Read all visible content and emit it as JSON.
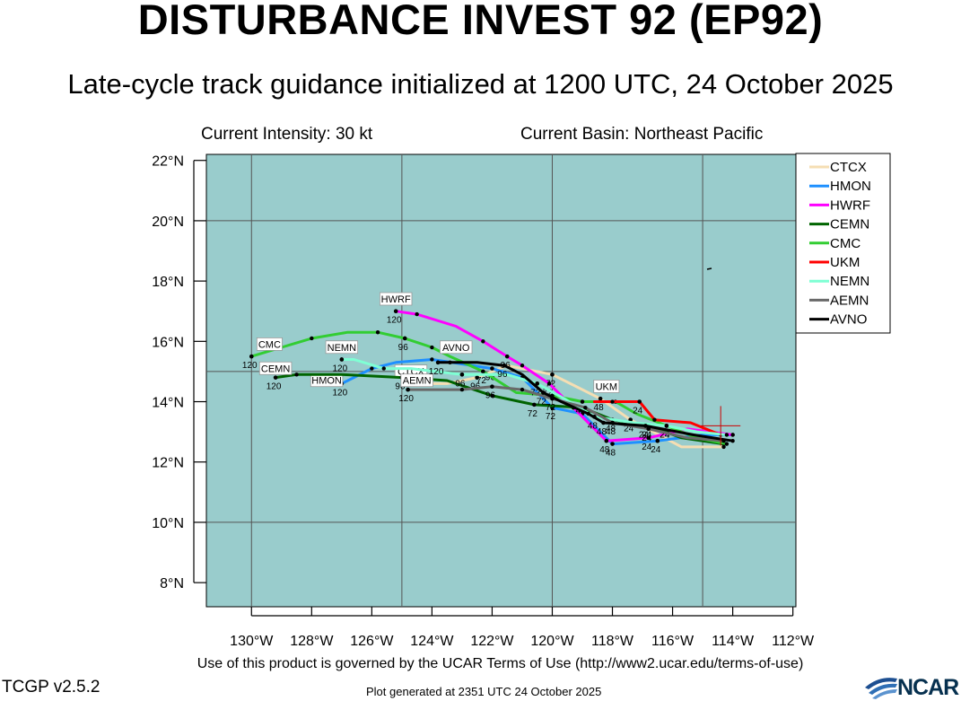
{
  "title": "DISTURBANCE INVEST 92 (EP92)",
  "subtitle": "Late-cycle track guidance initialized at 1200 UTC, 24 October 2025",
  "current_intensity": "Current Intensity: 30 kt",
  "current_basin": "Current Basin: Northeast Pacific",
  "terms": "Use of this product is governed by the UCAR Terms of Use (http://www2.ucar.edu/terms-of-use)",
  "version": "TCGP v2.5.2",
  "generated": "Plot generated at 2351 UTC   24 October 2025",
  "logo_text": "NCAR",
  "colors": {
    "ocean": "#99cccc",
    "grid": "#555555"
  },
  "chart_data": {
    "type": "line",
    "xlim": [
      -131.5,
      -111.9
    ],
    "ylim": [
      7.2,
      22.2
    ],
    "x_ticks": [
      {
        "v": -130,
        "t": "130°W"
      },
      {
        "v": -128,
        "t": "128°W"
      },
      {
        "v": -126,
        "t": "126°W"
      },
      {
        "v": -124,
        "t": "124°W"
      },
      {
        "v": -122,
        "t": "122°W"
      },
      {
        "v": -120,
        "t": "120°W"
      },
      {
        "v": -118,
        "t": "118°W"
      },
      {
        "v": -116,
        "t": "116°W"
      },
      {
        "v": -114,
        "t": "114°W"
      },
      {
        "v": -112,
        "t": "112°W"
      }
    ],
    "y_ticks": [
      {
        "v": 22,
        "t": "22°N"
      },
      {
        "v": 20,
        "t": "20°N"
      },
      {
        "v": 18,
        "t": "18°N"
      },
      {
        "v": 16,
        "t": "16°N"
      },
      {
        "v": 14,
        "t": "14°N"
      },
      {
        "v": 12,
        "t": "12°N"
      },
      {
        "v": 10,
        "t": "10°N"
      },
      {
        "v": 8,
        "t": "8°N"
      }
    ],
    "grid_lon": [
      -130,
      -125,
      -120,
      -115
    ],
    "grid_lat": [
      10,
      15,
      20
    ],
    "current_position": [
      -114.4,
      13.2
    ],
    "legend_position": "right",
    "series": [
      {
        "name": "CTCX",
        "color": "#f5deb3",
        "points": [
          [
            -114.3,
            12.5
          ],
          [
            -115.7,
            12.5
          ],
          [
            -117.4,
            13.4
          ],
          [
            -118.4,
            14.1
          ],
          [
            -120.0,
            14.9
          ],
          [
            -121.5,
            15.2
          ],
          [
            -122.5,
            14.8
          ],
          [
            -123.5,
            14.6
          ],
          [
            -124.2,
            14.6
          ]
        ],
        "tags": [
          {
            "i": 2,
            "t": "24"
          },
          {
            "i": 3,
            "t": "48"
          },
          {
            "i": 4,
            "t": "72"
          },
          {
            "i": 6,
            "t": "96"
          }
        ],
        "end_label": "CTCX",
        "end_label_pos": [
          -124.7,
          14.8
        ]
      },
      {
        "name": "HMON",
        "color": "#1e90ff",
        "points": [
          [
            -114.0,
            12.9
          ],
          [
            -115.0,
            12.9
          ],
          [
            -116.5,
            12.7
          ],
          [
            -118.0,
            12.6
          ],
          [
            -119.0,
            13.6
          ],
          [
            -120.0,
            13.8
          ],
          [
            -121.0,
            14.8
          ],
          [
            -122.0,
            15.1
          ],
          [
            -124.0,
            15.4
          ],
          [
            -125.2,
            15.3
          ],
          [
            -126.0,
            15.1
          ],
          [
            -127.0,
            14.6
          ]
        ],
        "tags": [
          {
            "i": 2,
            "t": "24"
          },
          {
            "i": 3,
            "t": "48"
          },
          {
            "i": 5,
            "t": "72"
          },
          {
            "i": 7,
            "t": "96"
          },
          {
            "i": 11,
            "t": "120"
          }
        ],
        "end_label": "HMON",
        "end_label_pos": [
          -127.5,
          14.5
        ]
      },
      {
        "name": "HWRF",
        "color": "#ff00ff",
        "points": [
          [
            -114.0,
            12.9
          ],
          [
            -115.5,
            13.1
          ],
          [
            -116.8,
            12.8
          ],
          [
            -118.2,
            12.7
          ],
          [
            -119.3,
            13.8
          ],
          [
            -120.1,
            14.6
          ],
          [
            -121.0,
            15.2
          ],
          [
            -121.5,
            15.5
          ],
          [
            -122.3,
            16.0
          ],
          [
            -123.2,
            16.5
          ],
          [
            -124.5,
            16.9
          ],
          [
            -125.2,
            17.0
          ]
        ],
        "tags": [
          {
            "i": 2,
            "t": "24"
          },
          {
            "i": 3,
            "t": "48"
          },
          {
            "i": 5,
            "t": "72"
          },
          {
            "i": 7,
            "t": "96"
          },
          {
            "i": 11,
            "t": "120"
          }
        ],
        "end_label": "HWRF",
        "end_label_pos": [
          -125.2,
          17.2
        ]
      },
      {
        "name": "CEMN",
        "color": "#006400",
        "points": [
          [
            -114.3,
            12.6
          ],
          [
            -115.7,
            12.8
          ],
          [
            -116.8,
            13.2
          ],
          [
            -118.0,
            13.4
          ],
          [
            -119.0,
            13.8
          ],
          [
            -120.6,
            13.9
          ],
          [
            -122.0,
            14.2
          ],
          [
            -123.5,
            14.7
          ],
          [
            -125.0,
            14.8
          ],
          [
            -127.0,
            14.9
          ],
          [
            -128.5,
            14.9
          ],
          [
            -129.2,
            14.8
          ]
        ],
        "tags": [
          {
            "i": 2,
            "t": "24"
          },
          {
            "i": 3,
            "t": "48"
          },
          {
            "i": 5,
            "t": "72"
          },
          {
            "i": 8,
            "t": "96"
          },
          {
            "i": 11,
            "t": "120"
          }
        ],
        "end_label": "CEMN",
        "end_label_pos": [
          -129.2,
          14.9
        ]
      },
      {
        "name": "CMC",
        "color": "#32cd32",
        "points": [
          [
            -114.2,
            12.6
          ],
          [
            -115.2,
            12.8
          ],
          [
            -116.2,
            13.2
          ],
          [
            -117.2,
            13.6
          ],
          [
            -117.9,
            14.0
          ],
          [
            -119.0,
            14.0
          ],
          [
            -120.0,
            14.2
          ],
          [
            -121.2,
            14.3
          ],
          [
            -122.3,
            15.0
          ],
          [
            -123.4,
            15.5
          ],
          [
            -124.0,
            15.8
          ],
          [
            -124.9,
            16.1
          ],
          [
            -125.8,
            16.3
          ],
          [
            -126.8,
            16.3
          ],
          [
            -128.0,
            16.1
          ],
          [
            -129.0,
            15.8
          ],
          [
            -130.0,
            15.5
          ]
        ],
        "tags": [
          {
            "i": 2,
            "t": "24"
          },
          {
            "i": 5,
            "t": "48"
          },
          {
            "i": 8,
            "t": "72"
          },
          {
            "i": 11,
            "t": "96"
          },
          {
            "i": 16,
            "t": "120"
          }
        ],
        "end_label": "CMC",
        "end_label_pos": [
          -129.4,
          15.7
        ]
      },
      {
        "name": "UKM",
        "color": "#ff0000",
        "points": [
          [
            -114.4,
            12.9
          ],
          [
            -115.4,
            13.3
          ],
          [
            -116.6,
            13.4
          ],
          [
            -117.1,
            14.0
          ],
          [
            -118.0,
            14.0
          ],
          [
            -118.6,
            14.0
          ]
        ],
        "tags": [
          {
            "i": 3,
            "t": "24"
          }
        ],
        "end_label": "UKM",
        "end_label_pos": [
          -118.2,
          14.3
        ]
      },
      {
        "name": "NEMN",
        "color": "#7fffd4",
        "points": [
          [
            -114.2,
            12.9
          ],
          [
            -115.2,
            13.0
          ],
          [
            -116.2,
            13.2
          ],
          [
            -117.3,
            13.3
          ],
          [
            -118.6,
            13.5
          ],
          [
            -119.6,
            14.1
          ],
          [
            -120.5,
            14.6
          ],
          [
            -121.5,
            14.9
          ],
          [
            -123.0,
            14.9
          ],
          [
            -124.7,
            15.1
          ],
          [
            -125.6,
            15.1
          ],
          [
            -126.6,
            15.4
          ],
          [
            -127.0,
            15.4
          ]
        ],
        "tags": [
          {
            "i": 2,
            "t": "24"
          },
          {
            "i": 4,
            "t": "48"
          },
          {
            "i": 6,
            "t": "72"
          },
          {
            "i": 8,
            "t": "96"
          },
          {
            "i": 12,
            "t": "120"
          }
        ],
        "end_label": "NEMN",
        "end_label_pos": [
          -127.0,
          15.6
        ]
      },
      {
        "name": "AEMN",
        "color": "#696969",
        "points": [
          [
            -114.3,
            12.7
          ],
          [
            -115.5,
            12.8
          ],
          [
            -116.8,
            13.1
          ],
          [
            -118.0,
            13.3
          ],
          [
            -118.9,
            13.8
          ],
          [
            -120.0,
            14.1
          ],
          [
            -121.0,
            14.4
          ],
          [
            -122.0,
            14.5
          ],
          [
            -123.0,
            14.4
          ],
          [
            -124.0,
            14.4
          ],
          [
            -124.8,
            14.4
          ]
        ],
        "tags": [
          {
            "i": 2,
            "t": "24"
          },
          {
            "i": 3,
            "t": "48"
          },
          {
            "i": 5,
            "t": "72"
          },
          {
            "i": 7,
            "t": "96"
          },
          {
            "i": 10,
            "t": "120"
          }
        ],
        "end_label": "AEMN",
        "end_label_pos": [
          -124.5,
          14.5
        ]
      },
      {
        "name": "AVNO",
        "color": "#000000",
        "points": [
          [
            -114.0,
            12.7
          ],
          [
            -115.3,
            12.9
          ],
          [
            -116.9,
            13.2
          ],
          [
            -118.3,
            13.3
          ],
          [
            -118.8,
            13.6
          ],
          [
            -119.7,
            14.0
          ],
          [
            -120.3,
            14.3
          ],
          [
            -121.0,
            14.9
          ],
          [
            -121.6,
            15.2
          ],
          [
            -122.5,
            15.3
          ],
          [
            -123.4,
            15.3
          ],
          [
            -123.8,
            15.3
          ]
        ],
        "tags": [
          {
            "i": 2,
            "t": "24"
          },
          {
            "i": 3,
            "t": "48"
          },
          {
            "i": 6,
            "t": "72"
          },
          {
            "i": 8,
            "t": "96"
          },
          {
            "i": 11,
            "t": "120"
          }
        ],
        "end_label": "AVNO",
        "end_label_pos": [
          -123.2,
          15.6
        ]
      }
    ]
  }
}
